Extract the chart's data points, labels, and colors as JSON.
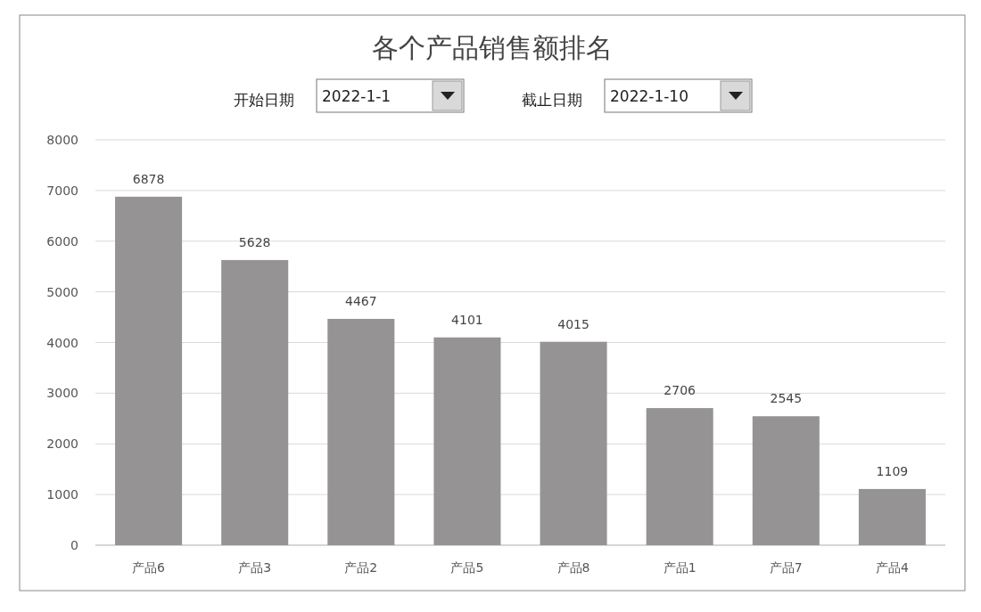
{
  "chart_data": {
    "type": "bar",
    "title": "各个产品销售额排名",
    "categories": [
      "产品6",
      "产品3",
      "产品2",
      "产品5",
      "产品8",
      "产品1",
      "产品7",
      "产品4"
    ],
    "series": [
      {
        "color": "#959393",
        "values": [
          6878,
          5628,
          4467,
          4101,
          4015,
          2706,
          2545,
          1109
        ]
      }
    ],
    "ylim": [
      0,
      8000
    ],
    "yticks": [
      0,
      1000,
      2000,
      3000,
      4000,
      5000,
      6000,
      7000,
      8000
    ],
    "grid": "y",
    "data_labels": true,
    "annotations": [
      "开始日期",
      "2022-1-1",
      "截止日期",
      "2022-1-10"
    ]
  }
}
